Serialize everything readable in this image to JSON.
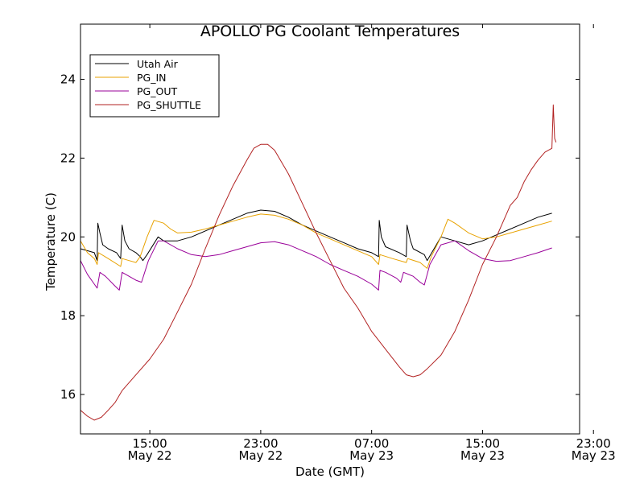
{
  "chart_data": {
    "type": "line",
    "title": "APOLLO PG Coolant Temperatures",
    "xlabel": "Date (GMT)",
    "ylabel": "Temperature (C)",
    "xlim": [
      10.0,
      46.0
    ],
    "ylim": [
      15.0,
      25.4
    ],
    "x_unit": "hours since May 22 00:00 GMT",
    "xticks": [
      {
        "x": 15,
        "time": "15:00",
        "date": "May 22"
      },
      {
        "x": 23,
        "time": "23:00",
        "date": "May 22"
      },
      {
        "x": 31,
        "time": "07:00",
        "date": "May 23"
      },
      {
        "x": 39,
        "time": "15:00",
        "date": "May 23"
      },
      {
        "x": 47,
        "time": "23:00",
        "date": "May 23"
      }
    ],
    "yticks": [
      16,
      18,
      20,
      22,
      24
    ],
    "legend_position": "top-left",
    "series": [
      {
        "name": "Utah Air",
        "color": "#000000",
        "points": [
          [
            10.0,
            19.7
          ],
          [
            11.0,
            19.6
          ],
          [
            11.1,
            19.5
          ],
          [
            11.2,
            19.4
          ],
          [
            11.25,
            20.35
          ],
          [
            11.4,
            20.1
          ],
          [
            11.6,
            19.8
          ],
          [
            12.0,
            19.7
          ],
          [
            12.6,
            19.6
          ],
          [
            12.9,
            19.45
          ],
          [
            13.0,
            20.3
          ],
          [
            13.2,
            19.9
          ],
          [
            13.5,
            19.7
          ],
          [
            14.0,
            19.6
          ],
          [
            14.3,
            19.5
          ],
          [
            14.5,
            19.4
          ],
          [
            14.8,
            19.55
          ],
          [
            15.6,
            20.0
          ],
          [
            16.0,
            19.9
          ],
          [
            17.0,
            19.9
          ],
          [
            18.0,
            20.0
          ],
          [
            19.0,
            20.15
          ],
          [
            20.0,
            20.3
          ],
          [
            21.0,
            20.45
          ],
          [
            22.0,
            20.6
          ],
          [
            23.0,
            20.68
          ],
          [
            24.0,
            20.65
          ],
          [
            25.0,
            20.5
          ],
          [
            26.0,
            20.3
          ],
          [
            27.0,
            20.15
          ],
          [
            28.0,
            20.0
          ],
          [
            29.0,
            19.85
          ],
          [
            30.0,
            19.7
          ],
          [
            31.0,
            19.6
          ],
          [
            31.5,
            19.5
          ],
          [
            31.55,
            20.42
          ],
          [
            31.7,
            20.0
          ],
          [
            32.0,
            19.75
          ],
          [
            33.0,
            19.6
          ],
          [
            33.5,
            19.5
          ],
          [
            33.55,
            20.3
          ],
          [
            33.8,
            19.9
          ],
          [
            34.0,
            19.7
          ],
          [
            34.8,
            19.55
          ],
          [
            35.0,
            19.4
          ],
          [
            35.5,
            19.7
          ],
          [
            36.0,
            20.0
          ],
          [
            37.0,
            19.9
          ],
          [
            38.0,
            19.8
          ],
          [
            39.0,
            19.9
          ],
          [
            40.0,
            20.05
          ],
          [
            41.0,
            20.2
          ],
          [
            42.0,
            20.35
          ],
          [
            43.0,
            20.5
          ],
          [
            44.0,
            20.6
          ]
        ]
      },
      {
        "name": "PG_IN",
        "color": "#e8a200",
        "points": [
          [
            10.0,
            19.9
          ],
          [
            10.5,
            19.6
          ],
          [
            11.0,
            19.45
          ],
          [
            11.2,
            19.3
          ],
          [
            11.3,
            19.6
          ],
          [
            12.0,
            19.45
          ],
          [
            12.9,
            19.25
          ],
          [
            13.0,
            19.45
          ],
          [
            13.5,
            19.4
          ],
          [
            14.0,
            19.35
          ],
          [
            14.3,
            19.5
          ],
          [
            14.8,
            20.0
          ],
          [
            15.3,
            20.42
          ],
          [
            16.0,
            20.35
          ],
          [
            16.5,
            20.2
          ],
          [
            17.0,
            20.1
          ],
          [
            18.0,
            20.12
          ],
          [
            19.0,
            20.2
          ],
          [
            20.0,
            20.3
          ],
          [
            21.0,
            20.4
          ],
          [
            22.0,
            20.5
          ],
          [
            23.0,
            20.58
          ],
          [
            24.0,
            20.55
          ],
          [
            25.0,
            20.45
          ],
          [
            26.0,
            20.3
          ],
          [
            27.0,
            20.1
          ],
          [
            28.0,
            19.95
          ],
          [
            29.0,
            19.8
          ],
          [
            30.0,
            19.65
          ],
          [
            31.0,
            19.5
          ],
          [
            31.5,
            19.3
          ],
          [
            31.6,
            19.55
          ],
          [
            32.5,
            19.45
          ],
          [
            33.5,
            19.35
          ],
          [
            33.6,
            19.45
          ],
          [
            34.5,
            19.35
          ],
          [
            35.0,
            19.2
          ],
          [
            35.3,
            19.5
          ],
          [
            36.0,
            20.0
          ],
          [
            36.5,
            20.45
          ],
          [
            37.0,
            20.35
          ],
          [
            38.0,
            20.1
          ],
          [
            39.0,
            19.95
          ],
          [
            40.0,
            20.0
          ],
          [
            41.0,
            20.1
          ],
          [
            42.0,
            20.2
          ],
          [
            43.0,
            20.3
          ],
          [
            44.0,
            20.4
          ]
        ]
      },
      {
        "name": "PG_OUT",
        "color": "#990099",
        "points": [
          [
            10.0,
            19.4
          ],
          [
            10.5,
            19.05
          ],
          [
            11.0,
            18.8
          ],
          [
            11.2,
            18.7
          ],
          [
            11.4,
            19.1
          ],
          [
            11.8,
            19.0
          ],
          [
            12.5,
            18.75
          ],
          [
            12.8,
            18.65
          ],
          [
            13.0,
            19.1
          ],
          [
            13.5,
            19.0
          ],
          [
            14.0,
            18.9
          ],
          [
            14.4,
            18.85
          ],
          [
            14.9,
            19.4
          ],
          [
            15.6,
            19.9
          ],
          [
            16.0,
            19.9
          ],
          [
            17.0,
            19.7
          ],
          [
            18.0,
            19.55
          ],
          [
            19.0,
            19.5
          ],
          [
            20.0,
            19.55
          ],
          [
            21.0,
            19.65
          ],
          [
            22.0,
            19.75
          ],
          [
            23.0,
            19.85
          ],
          [
            24.0,
            19.88
          ],
          [
            25.0,
            19.8
          ],
          [
            26.0,
            19.65
          ],
          [
            27.0,
            19.5
          ],
          [
            28.0,
            19.3
          ],
          [
            29.0,
            19.15
          ],
          [
            30.0,
            19.0
          ],
          [
            31.0,
            18.8
          ],
          [
            31.5,
            18.65
          ],
          [
            31.6,
            19.15
          ],
          [
            32.0,
            19.1
          ],
          [
            32.8,
            18.95
          ],
          [
            33.1,
            18.85
          ],
          [
            33.3,
            19.1
          ],
          [
            34.0,
            19.0
          ],
          [
            34.5,
            18.85
          ],
          [
            34.8,
            18.78
          ],
          [
            35.2,
            19.3
          ],
          [
            36.0,
            19.8
          ],
          [
            37.0,
            19.9
          ],
          [
            38.0,
            19.65
          ],
          [
            39.0,
            19.45
          ],
          [
            40.0,
            19.38
          ],
          [
            41.0,
            19.4
          ],
          [
            42.0,
            19.5
          ],
          [
            43.0,
            19.6
          ],
          [
            44.0,
            19.72
          ]
        ]
      },
      {
        "name": "PG_SHUTTLE",
        "color": "#b22222",
        "points": [
          [
            10.0,
            15.6
          ],
          [
            10.5,
            15.45
          ],
          [
            11.0,
            15.35
          ],
          [
            11.5,
            15.42
          ],
          [
            12.0,
            15.6
          ],
          [
            12.5,
            15.8
          ],
          [
            13.0,
            16.1
          ],
          [
            14.0,
            16.5
          ],
          [
            15.0,
            16.9
          ],
          [
            16.0,
            17.4
          ],
          [
            17.0,
            18.1
          ],
          [
            18.0,
            18.8
          ],
          [
            19.0,
            19.7
          ],
          [
            20.0,
            20.55
          ],
          [
            21.0,
            21.3
          ],
          [
            22.0,
            21.95
          ],
          [
            22.5,
            22.25
          ],
          [
            23.0,
            22.35
          ],
          [
            23.5,
            22.35
          ],
          [
            24.0,
            22.2
          ],
          [
            25.0,
            21.6
          ],
          [
            26.0,
            20.85
          ],
          [
            27.0,
            20.1
          ],
          [
            28.0,
            19.4
          ],
          [
            29.0,
            18.7
          ],
          [
            30.0,
            18.2
          ],
          [
            31.0,
            17.6
          ],
          [
            32.0,
            17.15
          ],
          [
            33.0,
            16.7
          ],
          [
            33.5,
            16.5
          ],
          [
            34.0,
            16.45
          ],
          [
            34.5,
            16.5
          ],
          [
            35.0,
            16.65
          ],
          [
            36.0,
            17.0
          ],
          [
            37.0,
            17.6
          ],
          [
            38.0,
            18.4
          ],
          [
            39.0,
            19.3
          ],
          [
            40.0,
            20.0
          ],
          [
            41.0,
            20.8
          ],
          [
            41.5,
            21.0
          ],
          [
            42.0,
            21.4
          ],
          [
            42.5,
            21.7
          ],
          [
            43.0,
            21.95
          ],
          [
            43.5,
            22.15
          ],
          [
            44.0,
            22.25
          ],
          [
            44.1,
            23.35
          ],
          [
            44.2,
            22.5
          ],
          [
            44.3,
            22.4
          ]
        ]
      }
    ]
  }
}
